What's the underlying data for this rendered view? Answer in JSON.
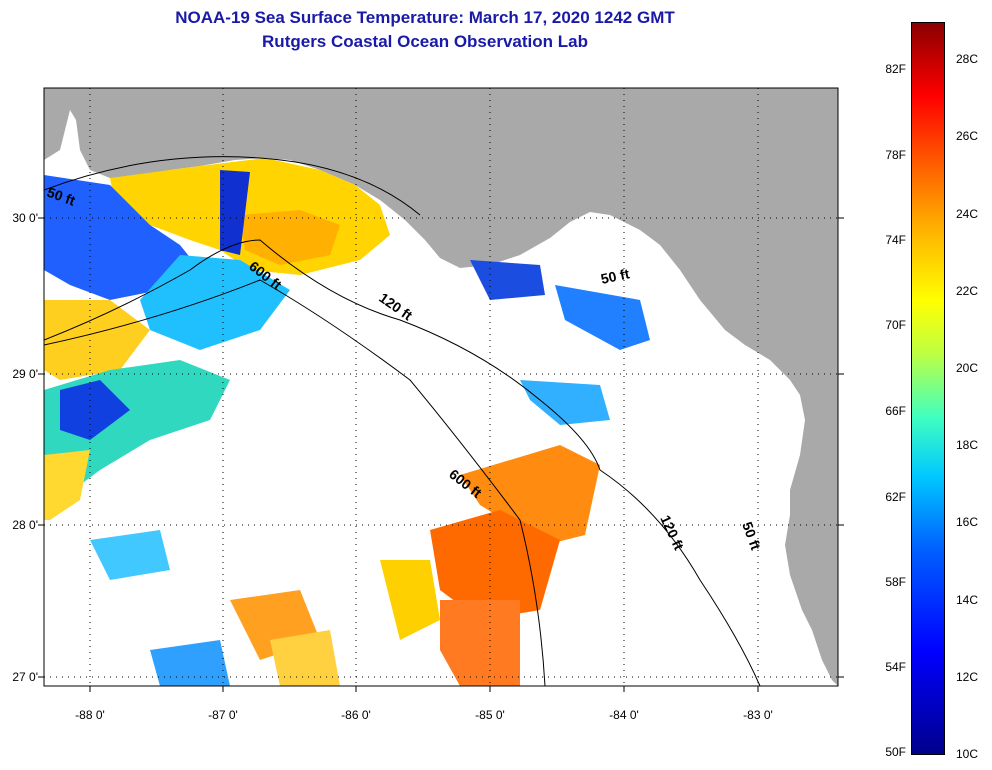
{
  "header": {
    "title": "NOAA-19 Sea Surface Temperature:  March 17, 2020 1242 GMT",
    "subtitle": "Rutgers Coastal Ocean Observation Lab"
  },
  "map": {
    "lat_labels": [
      "30 0'",
      "29 0'",
      "28 0'",
      "27 0'"
    ],
    "lon_labels": [
      "-88 0'",
      "-87 0'",
      "-86 0'",
      "-85 0'",
      "-84 0'",
      "-83 0'"
    ],
    "contour_labels": [
      "50 ft",
      "600 ft",
      "120 ft",
      "50 ft",
      "600 ft",
      "120 ft",
      "50 ft"
    ],
    "colors": {
      "land": "#a9a9a9",
      "ocean_nodata": "#ffffff"
    }
  },
  "colorbar": {
    "fahrenheit": [
      "82F",
      "78F",
      "74F",
      "70F",
      "66F",
      "62F",
      "58F",
      "54F",
      "50F"
    ],
    "celsius": [
      "28C",
      "26C",
      "24C",
      "22C",
      "20C",
      "18C",
      "16C",
      "14C",
      "12C",
      "10C"
    ]
  }
}
